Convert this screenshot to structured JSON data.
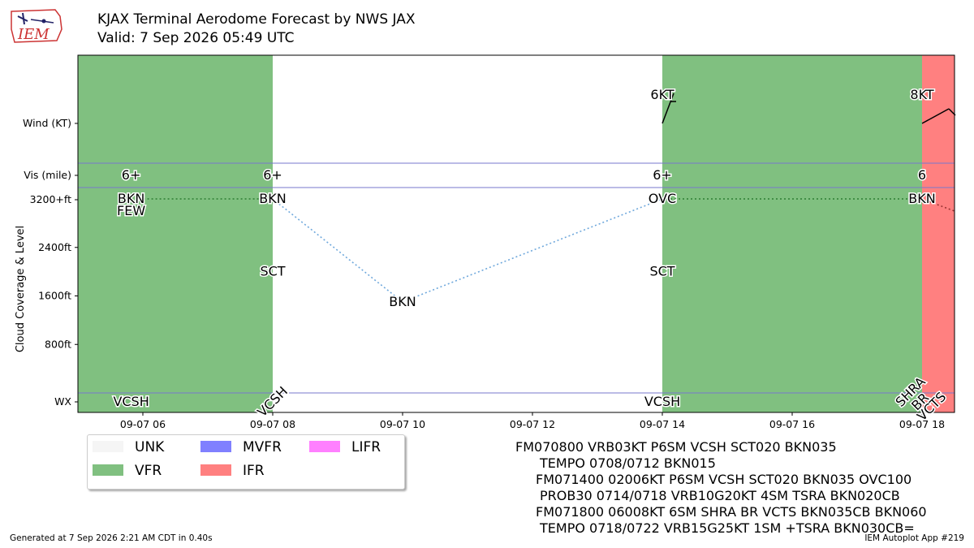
{
  "header": {
    "title_line1": "KJAX Terminal Aerodome Forecast by NWS JAX",
    "title_line2": "Valid: 7 Sep 2026 05:49 UTC",
    "logo_text": "IEM"
  },
  "colors": {
    "UNK": "#f5f5f5",
    "VFR": "#80c080",
    "MVFR": "#8080ff",
    "IFR": "#ff8080",
    "LIFR": "#ff80ff"
  },
  "legend": [
    {
      "label": "UNK",
      "key": "UNK"
    },
    {
      "label": "VFR",
      "key": "VFR"
    },
    {
      "label": "MVFR",
      "key": "MVFR"
    },
    {
      "label": "IFR",
      "key": "IFR"
    },
    {
      "label": "LIFR",
      "key": "LIFR"
    }
  ],
  "chart_data": {
    "type": "timeline",
    "xlim": [
      "09-07 05:00",
      "09-07 18:30"
    ],
    "x_ticks": [
      {
        "t": 6,
        "label": "09-07 06"
      },
      {
        "t": 8,
        "label": "09-07 08"
      },
      {
        "t": 10,
        "label": "09-07 10"
      },
      {
        "t": 12,
        "label": "09-07 12"
      },
      {
        "t": 14,
        "label": "09-07 14"
      },
      {
        "t": 16,
        "label": "09-07 16"
      },
      {
        "t": 18,
        "label": "09-07 18"
      }
    ],
    "row_labels": {
      "wind": "Wind (KT)",
      "vis": "Vis (mile)",
      "wx": "WX"
    },
    "ylabel": "Cloud Coverage & Level",
    "y_ticks": [
      {
        "ft": 3200,
        "label": "3200+ft"
      },
      {
        "ft": 2400,
        "label": "2400ft"
      },
      {
        "ft": 1600,
        "label": "1600ft"
      },
      {
        "ft": 800,
        "label": "800ft"
      }
    ],
    "ylim": [
      0,
      3200
    ],
    "categories": [
      {
        "start": 5.0,
        "end": 8.0,
        "category": "VFR"
      },
      {
        "start": 8.0,
        "end": 14.0,
        "category": "UNK"
      },
      {
        "start": 14.0,
        "end": 18.0,
        "category": "VFR"
      },
      {
        "start": 18.0,
        "end": 18.5,
        "category": "IFR"
      }
    ],
    "wind": [
      {
        "t": 14,
        "dir": 20,
        "speed": 6,
        "label": "6KT"
      },
      {
        "t": 18,
        "dir": 60,
        "speed": 8,
        "label": "8KT"
      }
    ],
    "visibility": [
      {
        "t": 5.82,
        "label": "6+"
      },
      {
        "t": 8,
        "label": "6+"
      },
      {
        "t": 14,
        "label": "6+"
      },
      {
        "t": 18,
        "label": "6"
      }
    ],
    "clouds": [
      {
        "t": 5.82,
        "ft": 3200,
        "label": "BKN"
      },
      {
        "t": 5.82,
        "ft": 3000,
        "label": "FEW"
      },
      {
        "t": 8,
        "ft": 3200,
        "label": "BKN"
      },
      {
        "t": 8,
        "ft": 2000,
        "label": "SCT"
      },
      {
        "t": 10,
        "ft": 1500,
        "label": "BKN"
      },
      {
        "t": 14,
        "ft": 3200,
        "label": "OVC"
      },
      {
        "t": 14,
        "ft": 2000,
        "label": "SCT"
      },
      {
        "t": 18,
        "ft": 3200,
        "label": "BKN"
      }
    ],
    "ceiling_line": [
      {
        "t": 5.82,
        "ft": 3200,
        "style": "prevailing"
      },
      {
        "t": 8,
        "ft": 3200,
        "style": "tempo"
      },
      {
        "t": 10,
        "ft": 1500,
        "style": "tempo"
      },
      {
        "t": 14,
        "ft": 3200,
        "style": "prevailing"
      },
      {
        "t": 18,
        "ft": 3200,
        "style": "tempo"
      },
      {
        "t": 18.5,
        "ft": 3000,
        "style": "tempo"
      }
    ],
    "weather": [
      {
        "t": 5.82,
        "label": "VCSH",
        "rotated": false
      },
      {
        "t": 8,
        "label": "VCSH",
        "rotated": true
      },
      {
        "t": 14,
        "label": "VCSH",
        "rotated": false
      },
      {
        "t": 18,
        "label": "SHRA",
        "rotated": true
      },
      {
        "t": 18,
        "label": "BR",
        "rotated": true
      },
      {
        "t": 18,
        "label": "VCTS",
        "rotated": true
      }
    ]
  },
  "taf_lines": [
    "FM070800 VRB03KT P6SM VCSH SCT020 BKN035",
    "TEMPO 0708/0712 BKN015",
    "FM071400 02006KT P6SM VCSH SCT020 BKN035 OVC100",
    "PROB30 0714/0718 VRB10G20KT 4SM TSRA BKN020CB",
    "FM071800 06008KT 6SM SHRA BR VCTS BKN035CB BKN060",
    "TEMPO 0718/0722 VRB15G25KT 1SM +TSRA BKN030CB="
  ],
  "footer": {
    "generated": "Generated at 7 Sep 2026 2:21 AM CDT in 0.40s",
    "app": "IEM Autoplot App #219"
  }
}
